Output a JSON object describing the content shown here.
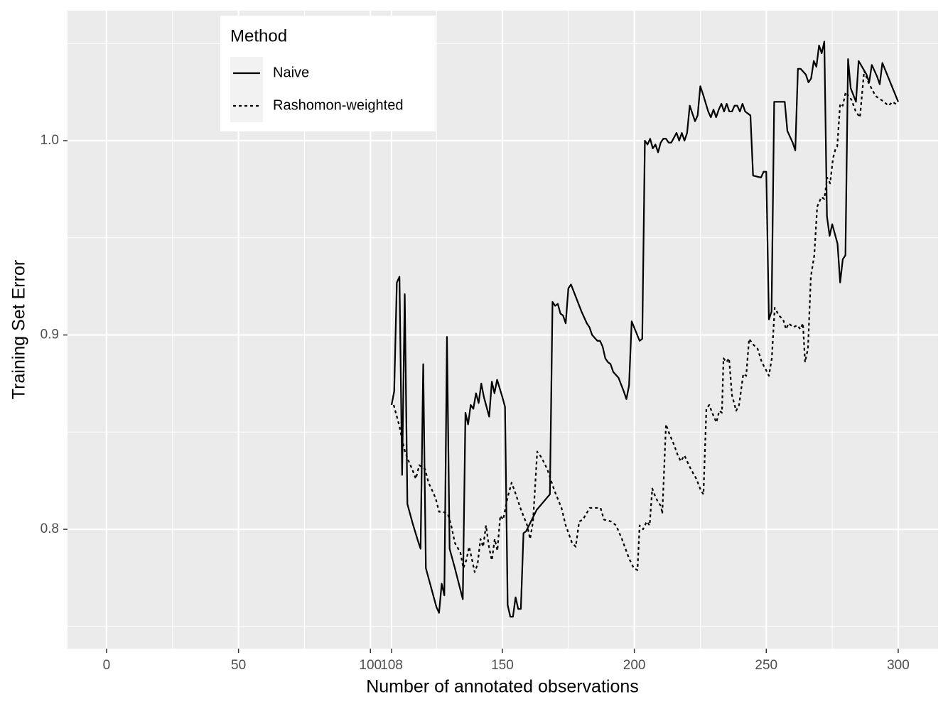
{
  "chart_data": {
    "type": "line",
    "x_label": "Number of annotated observations",
    "y_label": "Training Set Error",
    "legend_title": "Method",
    "legend_position": "top-left",
    "grid": true,
    "xlim": [
      -14.8,
      315.1
    ],
    "ylim": [
      0.7386,
      1.0669
    ],
    "xticks": [
      0,
      50,
      100,
      108,
      150,
      200,
      250,
      300
    ],
    "yticks": [
      0.8,
      0.9,
      {
        "value": 1,
        "label": "1.0"
      }
    ],
    "xminor": [
      25,
      75,
      125,
      175,
      225,
      275
    ],
    "yminor": [
      0.75,
      0.85,
      0.95,
      1.05
    ],
    "series": [
      {
        "name": "Naive",
        "color": "#000000",
        "linetype": "solid",
        "x": [
          108,
          109,
          110,
          111,
          112,
          113,
          114,
          116,
          118,
          119,
          120,
          121,
          123,
          125,
          126,
          127,
          128,
          129,
          130,
          132,
          135,
          136,
          137,
          138,
          139,
          140,
          141,
          142,
          143,
          145,
          146,
          147,
          148,
          150,
          151,
          152,
          153,
          154,
          155,
          156,
          157,
          158,
          159,
          163,
          168,
          169,
          170,
          171,
          172,
          173,
          174,
          175,
          176,
          180,
          182,
          183,
          184,
          186,
          187,
          188,
          189,
          190,
          191,
          192,
          194,
          196,
          197,
          198,
          199,
          202,
          203,
          204,
          205,
          206,
          207,
          208,
          209,
          210,
          211,
          212,
          213,
          214,
          216,
          217,
          218,
          219,
          220,
          221,
          223,
          224,
          225,
          226,
          228,
          229,
          230,
          231,
          232,
          233,
          234,
          235,
          236,
          237,
          238,
          239,
          240,
          241,
          242,
          244,
          245,
          248,
          249,
          250,
          251,
          252,
          253,
          257,
          258,
          260,
          261,
          262,
          263,
          265,
          266,
          267,
          268,
          269,
          270,
          271,
          272,
          273,
          274,
          275,
          277,
          278,
          279,
          280,
          281,
          282,
          284,
          285,
          288,
          289,
          290,
          292,
          293,
          294,
          300
        ],
        "values": [
          0.864,
          0.871,
          0.927,
          0.93,
          0.828,
          0.921,
          0.813,
          0.803,
          0.794,
          0.79,
          0.885,
          0.78,
          0.77,
          0.76,
          0.757,
          0.772,
          0.766,
          0.899,
          0.79,
          0.78,
          0.764,
          0.86,
          0.854,
          0.864,
          0.862,
          0.87,
          0.865,
          0.875,
          0.868,
          0.858,
          0.876,
          0.87,
          0.877,
          0.868,
          0.863,
          0.761,
          0.755,
          0.755,
          0.765,
          0.759,
          0.759,
          0.798,
          0.799,
          0.81,
          0.818,
          0.917,
          0.915,
          0.916,
          0.911,
          0.91,
          0.906,
          0.924,
          0.926,
          0.912,
          0.906,
          0.904,
          0.9,
          0.897,
          0.897,
          0.894,
          0.888,
          0.886,
          0.885,
          0.881,
          0.878,
          0.871,
          0.867,
          0.874,
          0.907,
          0.897,
          0.898,
          1.0,
          0.998,
          1.001,
          0.996,
          0.998,
          0.994,
          0.999,
          1.001,
          1.001,
          0.999,
          0.999,
          1.004,
          1.0,
          1.004,
          1.0,
          1.004,
          1.018,
          1.01,
          1.013,
          1.028,
          1.024,
          1.015,
          1.012,
          1.016,
          1.012,
          1.016,
          1.019,
          1.015,
          1.019,
          1.015,
          1.015,
          1.018,
          1.018,
          1.015,
          1.019,
          1.015,
          1.013,
          0.982,
          0.981,
          0.984,
          0.984,
          0.908,
          0.912,
          1.02,
          1.02,
          1.005,
          0.999,
          0.995,
          1.037,
          1.037,
          1.034,
          1.03,
          1.032,
          1.041,
          1.038,
          1.049,
          1.045,
          1.051,
          0.961,
          0.951,
          0.957,
          0.947,
          0.927,
          0.939,
          0.941,
          1.042,
          1.027,
          1.02,
          1.041,
          1.034,
          1.03,
          1.039,
          1.033,
          1.029,
          1.04,
          1.02
        ]
      },
      {
        "name": "Rashomon-weighted",
        "color": "#000000",
        "linetype": "dotted",
        "x": [
          108.8,
          111.0,
          112.0,
          113.1,
          114.5,
          115.8,
          117.2,
          118.5,
          120.7,
          122.0,
          123.4,
          124.7,
          126.0,
          127.4,
          129.3,
          130.6,
          132.0,
          134.1,
          135.2,
          136.3,
          137.4,
          138.4,
          139.5,
          140.6,
          141.7,
          142.7,
          143.8,
          144.9,
          146.0,
          147.1,
          148.1,
          149.2,
          150.3,
          151.9,
          153.5,
          155.1,
          156.8,
          159.4,
          160.5,
          161.6,
          163.2,
          164.8,
          167.0,
          169.7,
          172.4,
          174.0,
          176.4,
          177.8,
          179.1,
          180.5,
          183.1,
          185.8,
          187.2,
          188.5,
          191.2,
          193.1,
          195.3,
          198.0,
          199.8,
          201.2,
          202.0,
          203.3,
          204.7,
          205.8,
          206.8,
          207.9,
          209.0,
          210.1,
          210.6,
          212.0,
          213.3,
          214.9,
          216.5,
          217.6,
          219.0,
          220.0,
          221.4,
          223.5,
          225.2,
          226.2,
          227.3,
          228.4,
          229.5,
          231.1,
          232.2,
          233.2,
          233.8,
          234.9,
          235.9,
          237.0,
          238.6,
          239.7,
          241.3,
          242.4,
          243.5,
          245.1,
          246.7,
          248.3,
          249.9,
          251.0,
          252.1,
          253.2,
          254.8,
          256.4,
          257.5,
          258.5,
          260.2,
          261.8,
          262.9,
          263.9,
          264.7,
          265.8,
          266.9,
          268.2,
          269.3,
          270.9,
          272.0,
          273.1,
          274.2,
          275.3,
          276.3,
          276.9,
          278.0,
          279.0,
          280.1,
          281.2,
          282.3,
          283.9,
          285.5,
          287.1,
          288.7,
          291.4,
          294.6,
          296.3,
          297.9,
          300.0
        ],
        "values": [
          0.864,
          0.853,
          0.846,
          0.84,
          0.835,
          0.831,
          0.826,
          0.833,
          0.831,
          0.824,
          0.82,
          0.816,
          0.809,
          0.809,
          0.808,
          0.802,
          0.793,
          0.788,
          0.78,
          0.784,
          0.791,
          0.785,
          0.778,
          0.782,
          0.795,
          0.791,
          0.802,
          0.791,
          0.784,
          0.795,
          0.789,
          0.807,
          0.805,
          0.816,
          0.824,
          0.818,
          0.811,
          0.802,
          0.795,
          0.804,
          0.84,
          0.837,
          0.831,
          0.82,
          0.811,
          0.802,
          0.793,
          0.791,
          0.804,
          0.805,
          0.811,
          0.811,
          0.811,
          0.805,
          0.804,
          0.802,
          0.795,
          0.785,
          0.78,
          0.779,
          0.802,
          0.8,
          0.804,
          0.802,
          0.821,
          0.817,
          0.814,
          0.812,
          0.808,
          0.854,
          0.849,
          0.844,
          0.838,
          0.835,
          0.838,
          0.835,
          0.831,
          0.826,
          0.82,
          0.818,
          0.862,
          0.864,
          0.86,
          0.855,
          0.861,
          0.86,
          0.888,
          0.886,
          0.888,
          0.869,
          0.861,
          0.864,
          0.88,
          0.879,
          0.898,
          0.895,
          0.893,
          0.886,
          0.882,
          0.879,
          0.888,
          0.914,
          0.91,
          0.908,
          0.903,
          0.906,
          0.904,
          0.905,
          0.903,
          0.906,
          0.886,
          0.893,
          0.93,
          0.941,
          0.966,
          0.971,
          0.97,
          0.981,
          0.978,
          0.991,
          0.996,
          0.997,
          1.019,
          1.018,
          1.025,
          1.023,
          1.021,
          1.015,
          1.012,
          1.036,
          1.03,
          1.023,
          1.02,
          1.018,
          1.02,
          1.018
        ]
      }
    ]
  }
}
